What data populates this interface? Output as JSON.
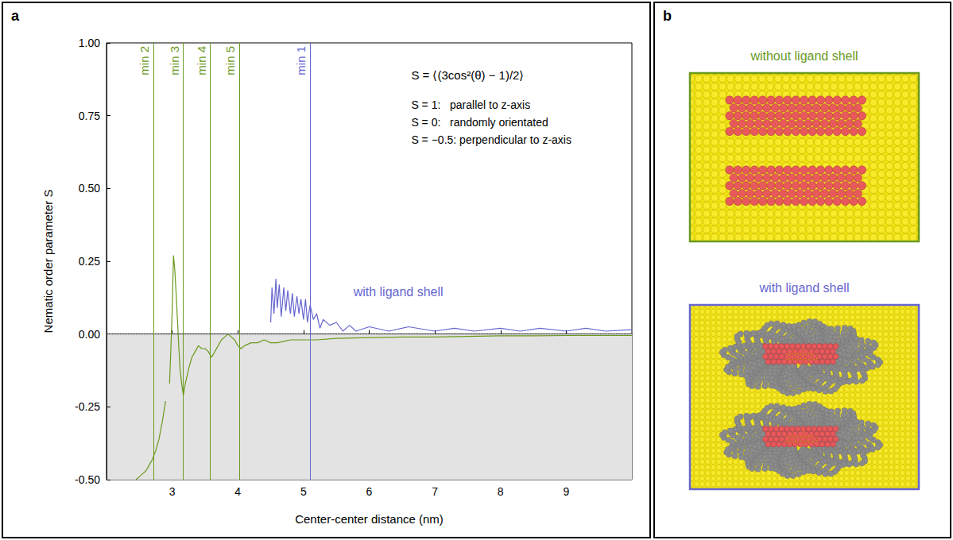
{
  "chart_data": {
    "type": "line",
    "panel_label": "a",
    "xlabel": "Center-center distance (nm)",
    "ylabel": "Nematic order parameter S",
    "xlim": [
      2,
      10
    ],
    "xticks": [
      3,
      4,
      5,
      6,
      7,
      8,
      9
    ],
    "ylim": [
      -0.5,
      1
    ],
    "yticks": [
      {
        "value": -0.5,
        "label": "-0.50"
      },
      {
        "value": -0.25,
        "label": "-0.25"
      },
      {
        "value": 0,
        "label": "0.00"
      },
      {
        "value": 0.25,
        "label": "0.25"
      },
      {
        "value": 0.5,
        "label": "0.50"
      },
      {
        "value": 0.75,
        "label": "0.75"
      },
      {
        "value": 1,
        "label": "1.00"
      }
    ],
    "grid": false,
    "reference_line": 0,
    "shaded_band": [
      -0.5,
      0
    ],
    "series": [
      {
        "name": "without ligand shell",
        "color": "#6b9a1f",
        "x": [
          2.45,
          2.5,
          2.55,
          2.6,
          2.65,
          2.7,
          2.75,
          2.8,
          2.85,
          2.9,
          2.93,
          2.96,
          2.98,
          3.0,
          3.02,
          3.04,
          3.06,
          3.08,
          3.1,
          3.12,
          3.15,
          3.17,
          3.2,
          3.25,
          3.3,
          3.35,
          3.4,
          3.45,
          3.5,
          3.55,
          3.6,
          3.65,
          3.7,
          3.75,
          3.8,
          3.85,
          3.9,
          3.95,
          4.0,
          4.05,
          4.1,
          4.2,
          4.3,
          4.4,
          4.5,
          4.6,
          4.7,
          4.8,
          5.0,
          5.2,
          5.5,
          6.0,
          6.5,
          7.0,
          7.5,
          8.0,
          8.5,
          9.0,
          9.5,
          10.0
        ],
        "values": [
          -0.5,
          -0.49,
          -0.48,
          -0.47,
          -0.45,
          -0.43,
          -0.4,
          -0.36,
          -0.3,
          -0.23,
          null,
          -0.17,
          -0.05,
          0.08,
          0.27,
          0.22,
          0.14,
          0.05,
          -0.04,
          -0.12,
          -0.18,
          -0.21,
          -0.17,
          -0.12,
          -0.08,
          -0.06,
          -0.04,
          -0.05,
          -0.05,
          -0.06,
          -0.08,
          -0.06,
          -0.04,
          -0.02,
          -0.01,
          0.0,
          -0.01,
          -0.02,
          -0.04,
          -0.05,
          -0.04,
          -0.03,
          -0.03,
          -0.02,
          -0.03,
          -0.03,
          -0.025,
          -0.02,
          -0.02,
          -0.02,
          -0.015,
          -0.012,
          -0.01,
          -0.01,
          -0.008,
          -0.006,
          -0.006,
          -0.005,
          -0.005,
          -0.005
        ]
      },
      {
        "name": "with ligand shell",
        "color": "#6666d0",
        "x": [
          4.5,
          4.52,
          4.55,
          4.58,
          4.6,
          4.63,
          4.66,
          4.7,
          4.73,
          4.76,
          4.8,
          4.83,
          4.86,
          4.9,
          4.93,
          4.96,
          5.0,
          5.03,
          5.06,
          5.1,
          5.15,
          5.2,
          5.25,
          5.3,
          5.4,
          5.5,
          5.6,
          5.7,
          5.8,
          6.0,
          6.3,
          6.6,
          7.0,
          7.3,
          7.6,
          8.0,
          8.3,
          8.6,
          9.0,
          9.3,
          9.6,
          10.0
        ],
        "values": [
          0.04,
          0.16,
          0.07,
          0.19,
          0.09,
          0.17,
          0.06,
          0.16,
          0.08,
          0.15,
          0.07,
          0.14,
          0.06,
          0.13,
          0.07,
          0.12,
          0.05,
          0.12,
          0.04,
          0.1,
          0.05,
          0.07,
          0.02,
          0.05,
          0.03,
          0.04,
          0.01,
          0.03,
          0.01,
          0.025,
          0.01,
          0.025,
          0.01,
          0.02,
          0.01,
          0.02,
          0.01,
          0.02,
          0.01,
          0.02,
          0.01,
          0.015
        ]
      }
    ],
    "vertical_lines": [
      {
        "x": 2.72,
        "label": "min 2",
        "color": "#6b9a1f"
      },
      {
        "x": 3.17,
        "label": "min 3",
        "color": "#6b9a1f"
      },
      {
        "x": 3.58,
        "label": "min 4",
        "color": "#6b9a1f"
      },
      {
        "x": 4.02,
        "label": "min 5",
        "color": "#6b9a1f"
      },
      {
        "x": 5.1,
        "label": "min 1",
        "color": "#6666d0"
      }
    ],
    "annotations": [
      "S = ⟨(3cos²(θ) − 1)/2⟩",
      "S = 1:   parallel to z-axis",
      "S = 0:   randomly orientated",
      "S = −0.5: perpendicular to z-axis"
    ]
  },
  "panel_b": {
    "panel_label": "b",
    "images": [
      {
        "title": "without ligand shell",
        "color": "#6b9a1f"
      },
      {
        "title": "with ligand shell",
        "color": "#6666d0"
      }
    ]
  }
}
